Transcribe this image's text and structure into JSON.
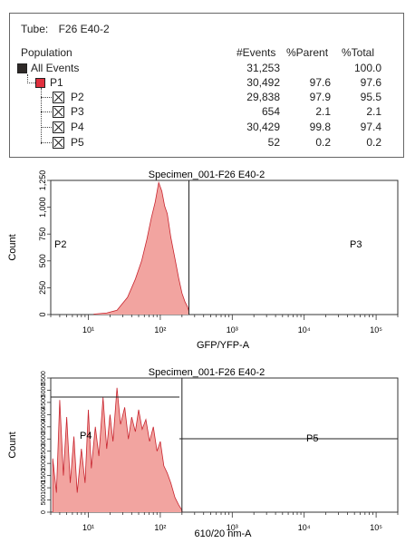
{
  "table": {
    "tube_label": "Tube:",
    "tube_name": "F26 E40-2",
    "headers": {
      "population": "Population",
      "events": "#Events",
      "parent": "%Parent",
      "total": "%Total"
    },
    "rows": [
      {
        "name": "All Events",
        "events": "31,253",
        "parent": "",
        "total": "100.0",
        "level": 0,
        "marker": "square",
        "color": "#2e2a28"
      },
      {
        "name": "P1",
        "events": "30,492",
        "parent": "97.6",
        "total": "97.6",
        "level": 1,
        "marker": "square",
        "color": "#e0303e"
      },
      {
        "name": "P2",
        "events": "29,838",
        "parent": "97.9",
        "total": "95.5",
        "level": 2,
        "marker": "cross"
      },
      {
        "name": "P3",
        "events": "654",
        "parent": "2.1",
        "total": "2.1",
        "level": 2,
        "marker": "cross"
      },
      {
        "name": "P4",
        "events": "30,429",
        "parent": "99.8",
        "total": "97.4",
        "level": 2,
        "marker": "cross"
      },
      {
        "name": "P5",
        "events": "52",
        "parent": "0.2",
        "total": "0.2",
        "level": 2,
        "marker": "cross"
      }
    ]
  },
  "chart_data": [
    {
      "type": "area",
      "title": "Specimen_001-F26 E40-2",
      "xlabel": "GFP/YFP-A",
      "ylabel": "Count",
      "x_scale": "log",
      "x_range": [
        3,
        200000
      ],
      "x_tick_labels": [
        "10¹",
        "10²",
        "10³",
        "10⁴",
        "10⁵"
      ],
      "ylim": [
        0,
        1250
      ],
      "y_ticks": [
        0,
        250,
        500,
        750,
        1000,
        1250
      ],
      "y_tick_labels": [
        "0",
        "250",
        "500",
        "750",
        "1,000",
        "1,250"
      ],
      "gate_x": 250,
      "gate_labels": [
        "P2",
        "P3"
      ],
      "fill_color": "#f2a4a0",
      "line_color": "#c8242e",
      "peaks": [
        [
          12,
          4
        ],
        [
          18,
          15
        ],
        [
          25,
          40
        ],
        [
          35,
          160
        ],
        [
          45,
          330
        ],
        [
          55,
          500
        ],
        [
          65,
          700
        ],
        [
          75,
          900
        ],
        [
          85,
          1050
        ],
        [
          95,
          1230
        ],
        [
          105,
          1150
        ],
        [
          115,
          1010
        ],
        [
          125,
          940
        ],
        [
          140,
          720
        ],
        [
          160,
          520
        ],
        [
          180,
          340
        ],
        [
          200,
          200
        ],
        [
          220,
          120
        ],
        [
          240,
          70
        ],
        [
          250,
          30
        ]
      ]
    },
    {
      "type": "area",
      "title": "Specimen_001-F26 E40-2",
      "xlabel": "610/20 nm-A",
      "ylabel": "Count",
      "x_scale": "log",
      "x_range": [
        3,
        200000
      ],
      "x_tick_labels": [
        "10¹",
        "10²",
        "10³",
        "10⁴",
        "10⁵"
      ],
      "ylim": [
        0,
        5500
      ],
      "y_ticks": [
        0,
        500,
        1000,
        1500,
        2000,
        2500,
        3000,
        3500,
        4000,
        4500,
        5000,
        5500
      ],
      "y_tick_labels": [
        "0",
        "500",
        "1000",
        "1500",
        "2000",
        "2500",
        "3000",
        "3500",
        "4000",
        "4500",
        "5000",
        "5500"
      ],
      "gate_x": 200,
      "gate_labels": [
        "P4",
        "P5"
      ],
      "fill_color": "#f2a4a0",
      "line_color": "#c8242e",
      "peaks": [
        [
          3.2,
          2200
        ],
        [
          3.6,
          800
        ],
        [
          4,
          4600
        ],
        [
          4.5,
          1500
        ],
        [
          5,
          3900
        ],
        [
          5.6,
          1200
        ],
        [
          6.3,
          3100
        ],
        [
          7,
          800
        ],
        [
          8,
          2600
        ],
        [
          9,
          1200
        ],
        [
          10,
          4200
        ],
        [
          11,
          1800
        ],
        [
          12.5,
          3500
        ],
        [
          14,
          2300
        ],
        [
          16,
          4700
        ],
        [
          18,
          2600
        ],
        [
          20,
          4000
        ],
        [
          22,
          2900
        ],
        [
          25,
          5100
        ],
        [
          28,
          3600
        ],
        [
          32,
          4300
        ],
        [
          36,
          3000
        ],
        [
          40,
          3900
        ],
        [
          45,
          3300
        ],
        [
          50,
          4200
        ],
        [
          56,
          3400
        ],
        [
          63,
          3800
        ],
        [
          71,
          2900
        ],
        [
          80,
          3500
        ],
        [
          90,
          2500
        ],
        [
          100,
          2900
        ],
        [
          112,
          1900
        ],
        [
          125,
          1600
        ],
        [
          140,
          1200
        ],
        [
          160,
          600
        ],
        [
          180,
          300
        ],
        [
          200,
          80
        ]
      ]
    }
  ]
}
